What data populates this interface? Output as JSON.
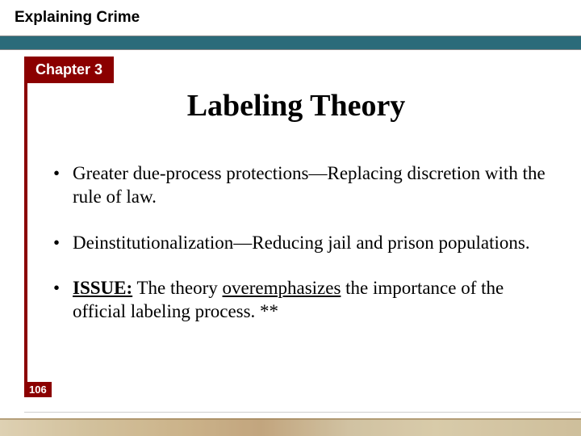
{
  "header": {
    "title": "Explaining Crime",
    "chapter_label": "Chapter 3"
  },
  "main": {
    "title": "Labeling Theory"
  },
  "bullets": [
    {
      "text_plain": "Greater due-process protections—Replacing discretion with the rule of law."
    },
    {
      "text_plain": "Deinstitutionalization—Reducing jail and prison populations."
    },
    {
      "issue_label": "ISSUE:",
      "before": " The theory ",
      "emph": "overemphasizes",
      "after": " the importance of the official labeling process. **"
    }
  ],
  "page_number": "106",
  "colors": {
    "teal": "#2b6b7a",
    "dark_red": "#8b0000",
    "text": "#000000",
    "bg": "#ffffff"
  },
  "fonts": {
    "title_size_pt": 38,
    "body_size_pt": 23,
    "header_size_pt": 19,
    "chapter_size_pt": 18
  }
}
